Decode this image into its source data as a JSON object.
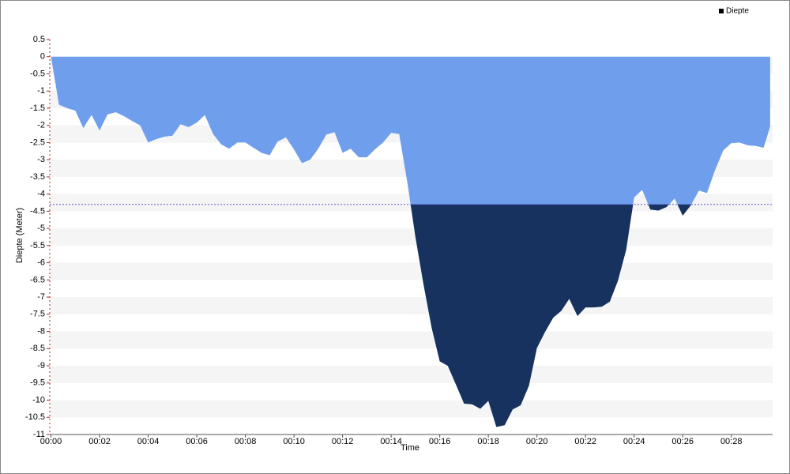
{
  "chart_data": {
    "type": "area",
    "x_label": "Time",
    "y_label": "Diepte (Meter)",
    "xlim": [
      -0.05,
      29.7
    ],
    "ylim": [
      -11,
      0.5
    ],
    "yticks": [
      0.5,
      0,
      -0.5,
      -1,
      -1.5,
      -2,
      -2.5,
      -3,
      -3.5,
      -4,
      -4.5,
      -5,
      -5.5,
      -6,
      -6.5,
      -7,
      -7.5,
      -8,
      -8.5,
      -9,
      -9.5,
      -10,
      -10.5,
      -11
    ],
    "xticks": [
      {
        "value": 0,
        "label": "00:00"
      },
      {
        "value": 2,
        "label": "00:02"
      },
      {
        "value": 4,
        "label": "00:04"
      },
      {
        "value": 6,
        "label": "00:06"
      },
      {
        "value": 8,
        "label": "00:08"
      },
      {
        "value": 10,
        "label": "00:10"
      },
      {
        "value": 12,
        "label": "00:12"
      },
      {
        "value": 14,
        "label": "00:14"
      },
      {
        "value": 16,
        "label": "00:16"
      },
      {
        "value": 18,
        "label": "00:18"
      },
      {
        "value": 20,
        "label": "00:20"
      },
      {
        "value": 22,
        "label": "00:22"
      },
      {
        "value": 24,
        "label": "00:24"
      },
      {
        "value": 26,
        "label": "00:26"
      },
      {
        "value": 28,
        "label": "00:28"
      }
    ],
    "grid": true,
    "legend": "top-right",
    "reference_line": -4.3,
    "below_color": "#17325e",
    "x": [
      0,
      0.33,
      0.67,
      1,
      1.33,
      1.67,
      2,
      2.33,
      2.67,
      3,
      3.33,
      3.67,
      4,
      4.33,
      4.67,
      5,
      5.33,
      5.67,
      6,
      6.33,
      6.67,
      7,
      7.33,
      7.67,
      8,
      8.33,
      8.67,
      9,
      9.33,
      9.67,
      10,
      10.33,
      10.67,
      11,
      11.33,
      11.67,
      12,
      12.33,
      12.67,
      13,
      13.33,
      13.67,
      14,
      14.33,
      14.67,
      15,
      15.33,
      15.67,
      16,
      16.33,
      16.67,
      17,
      17.33,
      17.67,
      18,
      18.33,
      18.67,
      19,
      19.33,
      19.67,
      20,
      20.33,
      20.67,
      21,
      21.33,
      21.67,
      22,
      22.33,
      22.67,
      23,
      23.33,
      23.67,
      24,
      24.33,
      24.67,
      25,
      25.33,
      25.67,
      26,
      26.33,
      26.67,
      27,
      27.33,
      27.67,
      28,
      28.33,
      28.67,
      29,
      29.33,
      29.6
    ],
    "series": [
      {
        "name": "Diepte",
        "color": "#6f9fec",
        "values": [
          0,
          -1.4,
          -1.5,
          -1.57,
          -2.08,
          -1.7,
          -2.15,
          -1.68,
          -1.62,
          -1.73,
          -1.87,
          -2.0,
          -2.5,
          -2.4,
          -2.33,
          -2.3,
          -1.97,
          -2.05,
          -1.92,
          -1.7,
          -2.25,
          -2.55,
          -2.68,
          -2.5,
          -2.5,
          -2.65,
          -2.8,
          -2.87,
          -2.47,
          -2.35,
          -2.7,
          -3.1,
          -3.0,
          -2.68,
          -2.27,
          -2.2,
          -2.8,
          -2.68,
          -2.93,
          -2.93,
          -2.7,
          -2.5,
          -2.22,
          -2.25,
          -3.68,
          -5.25,
          -6.62,
          -7.9,
          -8.87,
          -9.0,
          -9.55,
          -10.1,
          -10.12,
          -10.25,
          -10.02,
          -10.78,
          -10.73,
          -10.27,
          -10.15,
          -9.58,
          -8.48,
          -8.02,
          -7.6,
          -7.4,
          -7.05,
          -7.55,
          -7.3,
          -7.3,
          -7.28,
          -7.13,
          -6.53,
          -5.63,
          -4.1,
          -3.88,
          -4.45,
          -4.48,
          -4.38,
          -4.13,
          -4.63,
          -4.33,
          -3.9,
          -3.97,
          -3.3,
          -2.73,
          -2.52,
          -2.5,
          -2.58,
          -2.6,
          -2.65,
          -2.03
        ]
      }
    ]
  }
}
